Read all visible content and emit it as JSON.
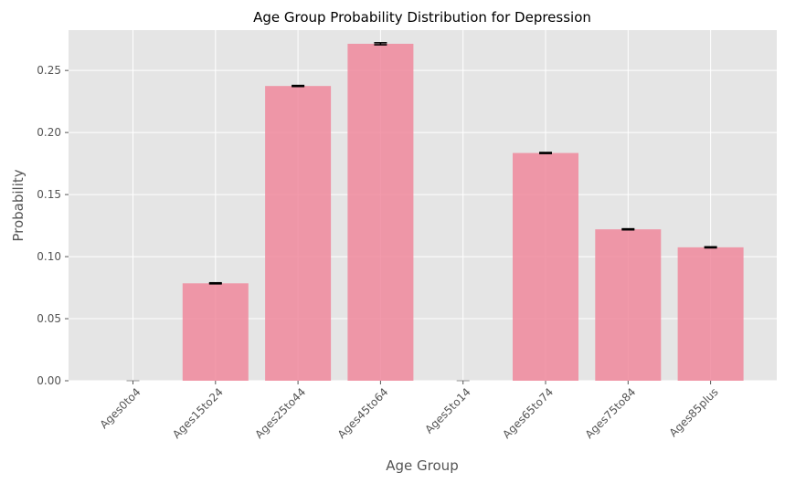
{
  "chart_data": {
    "type": "bar",
    "title": "Age Group Probability Distribution for Depression",
    "xlabel": "Age Group",
    "ylabel": "Probability",
    "categories": [
      "Ages0to4",
      "Ages15to24",
      "Ages25to44",
      "Ages45to64",
      "Ages5to14",
      "Ages65to74",
      "Ages75to84",
      "Ages85plus"
    ],
    "values": [
      0.0,
      0.0785,
      0.2375,
      0.2715,
      0.0,
      0.1835,
      0.122,
      0.1075
    ],
    "error": [
      0.0003,
      0.0004,
      0.0004,
      0.0008,
      0.0003,
      0.0004,
      0.0004,
      0.0004
    ],
    "ylim": [
      0,
      0.2825
    ],
    "yticks": [
      0.0,
      0.05,
      0.1,
      0.15,
      0.2,
      0.25
    ],
    "ytick_labels": [
      "0.00",
      "0.05",
      "0.10",
      "0.15",
      "0.20",
      "0.25"
    ],
    "grid": true,
    "legend": "none",
    "colors": {
      "bar": "#f0889c",
      "plot_bg": "#e5e5e5",
      "grid": "#ffffff",
      "error_bar": "#000000"
    }
  }
}
